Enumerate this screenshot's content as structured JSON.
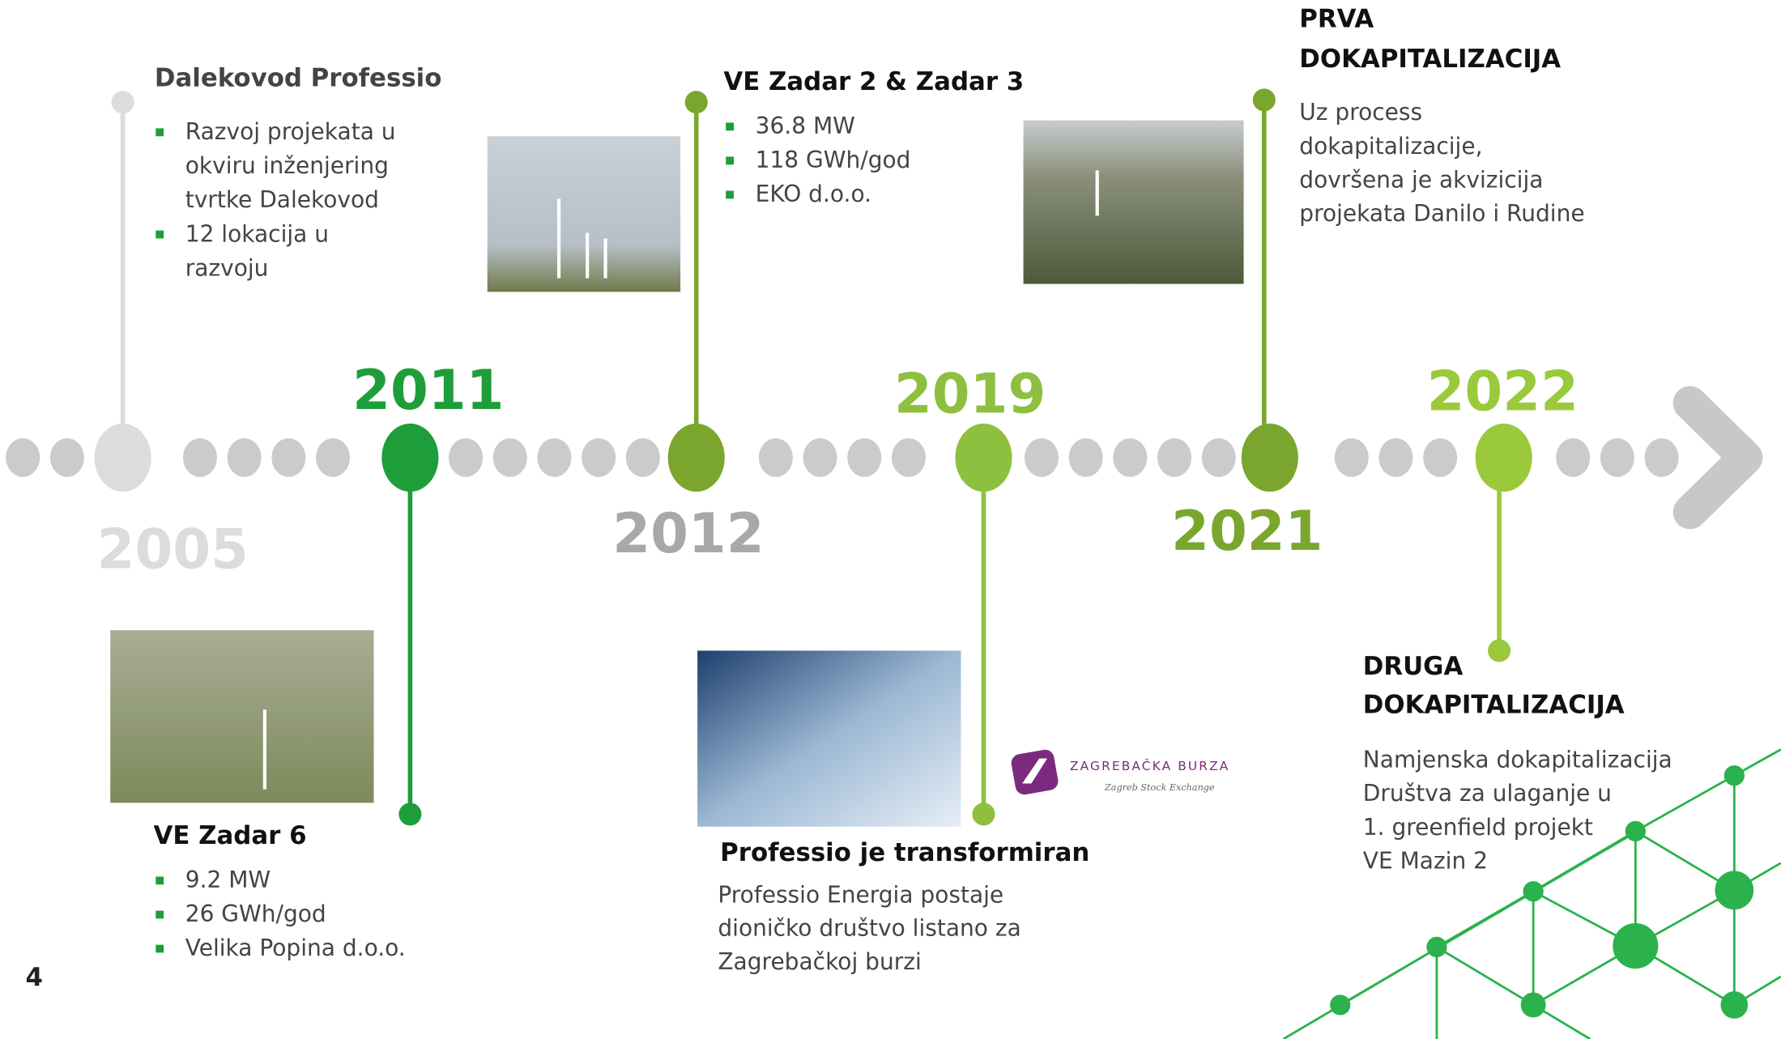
{
  "page_number": "4",
  "events": [
    {
      "year": "2005",
      "title": [
        "Dalekovod Professio"
      ],
      "bullets": [
        [
          "Razvoj projekata u",
          "okviru inženjering",
          "tvrtke Dalekovod"
        ],
        [
          "12 lokacija u",
          "razvoju"
        ]
      ]
    },
    {
      "year": "2011",
      "title": [
        "VE Zadar 6"
      ],
      "bullets": [
        [
          "9.2 MW"
        ],
        [
          "26 GWh/god"
        ],
        [
          "Velika Popina d.o.o."
        ]
      ]
    },
    {
      "year": "2012",
      "title": [
        "VE Zadar 2 & Zadar 3"
      ],
      "bullets": [
        [
          "36.8 MW"
        ],
        [
          "118 GWh/god"
        ],
        [
          "EKO d.o.o."
        ]
      ]
    },
    {
      "year": "2019",
      "title": [
        "Professio je transformiran"
      ],
      "text": [
        "Professio Energia postaje",
        "dioničko društvo listano za",
        "Zagrebačkoj burzi"
      ]
    },
    {
      "year": "2021",
      "title": [
        "PRVA",
        "DOKAPITALIZACIJA"
      ],
      "text": [
        "Uz process",
        "dokapitalizacije,",
        "dovršena je akvizicija",
        "projekata Danilo i Rudine"
      ]
    },
    {
      "year": "2022",
      "title": [
        "DRUGA",
        "DOKAPITALIZACIJA"
      ],
      "text": [
        "Namjenska dokapitalizacija",
        "Društva za ulaganje u",
        "1. greenfield projekt",
        "VE Mazin 2"
      ]
    }
  ],
  "logo": {
    "name": "ZAGREBAČKA BURZA",
    "subtitle": "Zagreb Stock Exchange"
  }
}
